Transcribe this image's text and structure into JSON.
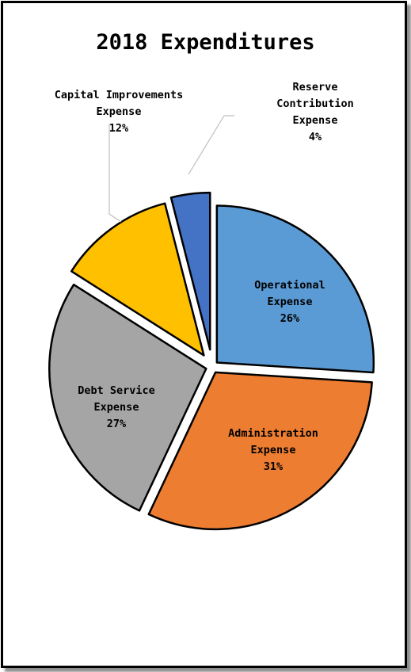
{
  "chart_data": {
    "type": "pie",
    "title": "2018 Expenditures",
    "exploded": true,
    "legend": "none",
    "slices": [
      {
        "label_lines": [
          "Operational",
          "Expense"
        ],
        "value": 26,
        "value_label": "26%",
        "color": "#5B9BD5",
        "label_position": "inside"
      },
      {
        "label_lines": [
          "Administration",
          "Expense"
        ],
        "value": 31,
        "value_label": "31%",
        "color": "#ED7D31",
        "label_position": "inside"
      },
      {
        "label_lines": [
          "Debt Service",
          "Expense"
        ],
        "value": 27,
        "value_label": "27%",
        "color": "#A5A5A5",
        "label_position": "inside"
      },
      {
        "label_lines": [
          "Capital Improvements",
          "Expense"
        ],
        "value": 12,
        "value_label": "12%",
        "color": "#FFC000",
        "label_position": "outside"
      },
      {
        "label_lines": [
          "Reserve",
          "Contribution",
          "Expense"
        ],
        "value": 4,
        "value_label": "4%",
        "color": "#4472C4",
        "label_position": "outside"
      }
    ]
  }
}
